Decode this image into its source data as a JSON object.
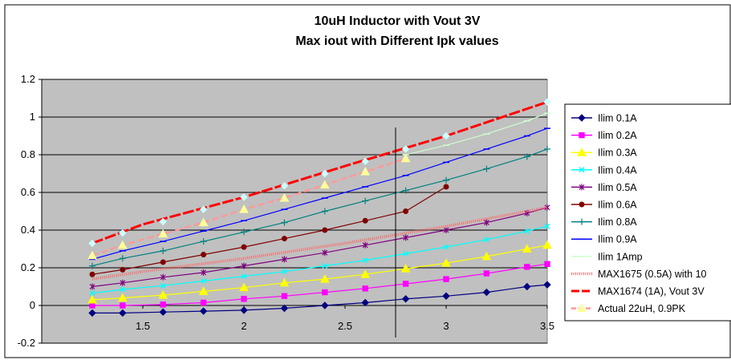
{
  "chart_data": {
    "type": "line",
    "title": [
      "10uH Inductor with Vout 3V",
      "Max iout with Different Ipk values"
    ],
    "xlim": [
      1,
      3.5
    ],
    "ylim": [
      -0.2,
      1.2
    ],
    "xticks": [
      "1.5",
      "2",
      "2.5",
      "3",
      "3.5"
    ],
    "yticks": [
      "-0.2",
      "0",
      "0.2",
      "0.4",
      "0.6",
      "0.8",
      "1",
      "1.2"
    ],
    "plot_background": "#c0c0c0",
    "grid": "horizontal",
    "legend_position": "right",
    "vertical_marker_x": 2.75,
    "series": [
      {
        "name": "Ilim 0.1A",
        "color": "#000080",
        "marker": "diamond",
        "x": [
          1.25,
          1.4,
          1.6,
          1.8,
          2,
          2.2,
          2.4,
          2.6,
          2.8,
          3,
          3.2,
          3.4,
          3.5
        ],
        "y": [
          -0.04,
          -0.04,
          -0.035,
          -0.03,
          -0.025,
          -0.015,
          0,
          0.015,
          0.035,
          0.05,
          0.07,
          0.1,
          0.11
        ]
      },
      {
        "name": "Ilim 0.2A",
        "color": "#ff00ff",
        "marker": "square",
        "x": [
          1.25,
          1.4,
          1.6,
          1.8,
          2,
          2.2,
          2.4,
          2.6,
          2.8,
          3,
          3.2,
          3.4,
          3.5
        ],
        "y": [
          0,
          0,
          0.005,
          0.015,
          0.035,
          0.05,
          0.07,
          0.09,
          0.115,
          0.14,
          0.17,
          0.205,
          0.22
        ]
      },
      {
        "name": "Ilim 0.3A",
        "color": "#ffff00",
        "marker": "triangle",
        "x": [
          1.25,
          1.4,
          1.6,
          1.8,
          2,
          2.2,
          2.4,
          2.6,
          2.8,
          3,
          3.2,
          3.4,
          3.5
        ],
        "y": [
          0.03,
          0.04,
          0.055,
          0.075,
          0.095,
          0.12,
          0.14,
          0.165,
          0.195,
          0.225,
          0.26,
          0.3,
          0.32
        ]
      },
      {
        "name": "Ilim 0.4A",
        "color": "#00ffff",
        "marker": "x",
        "x": [
          1.25,
          1.4,
          1.6,
          1.8,
          2,
          2.2,
          2.4,
          2.6,
          2.8,
          3,
          3.2,
          3.4,
          3.5
        ],
        "y": [
          0.065,
          0.085,
          0.105,
          0.13,
          0.155,
          0.18,
          0.21,
          0.24,
          0.275,
          0.31,
          0.35,
          0.395,
          0.42
        ]
      },
      {
        "name": "Ilim 0.5A",
        "color": "#800080",
        "marker": "star",
        "x": [
          1.25,
          1.4,
          1.6,
          1.8,
          2,
          2.2,
          2.4,
          2.6,
          2.8,
          3,
          3.2,
          3.4,
          3.5
        ],
        "y": [
          0.1,
          0.12,
          0.15,
          0.175,
          0.21,
          0.245,
          0.28,
          0.32,
          0.36,
          0.4,
          0.44,
          0.49,
          0.52
        ]
      },
      {
        "name": "Ilim 0.6A",
        "color": "#800000",
        "marker": "circle",
        "x": [
          1.25,
          1.4,
          1.6,
          1.8,
          2,
          2.2,
          2.4,
          2.6,
          2.8,
          3
        ],
        "y": [
          0.165,
          0.19,
          0.23,
          0.27,
          0.31,
          0.355,
          0.4,
          0.45,
          0.5,
          0.63
        ]
      },
      {
        "name": "Ilim 0.8A",
        "color": "#008080",
        "marker": "plus",
        "x": [
          1.25,
          1.4,
          1.6,
          1.8,
          2,
          2.2,
          2.4,
          2.6,
          2.8,
          3,
          3.2,
          3.4,
          3.5
        ],
        "y": [
          0.21,
          0.25,
          0.29,
          0.34,
          0.39,
          0.44,
          0.5,
          0.555,
          0.61,
          0.665,
          0.725,
          0.79,
          0.83
        ]
      },
      {
        "name": "Ilim 0.9A",
        "color": "#0000ff",
        "marker": "dash",
        "x": [
          1.25,
          1.4,
          1.6,
          1.8,
          2,
          2.2,
          2.4,
          2.6,
          2.8,
          3,
          3.2,
          3.4,
          3.5
        ],
        "y": [
          0.245,
          0.29,
          0.34,
          0.395,
          0.45,
          0.51,
          0.57,
          0.63,
          0.69,
          0.76,
          0.83,
          0.9,
          0.94
        ]
      },
      {
        "name": "Ilim 1Amp",
        "color": "#ccffcc",
        "marker": "dash",
        "x": [
          2.8,
          3,
          3.2,
          3.4,
          3.5
        ],
        "y": [
          0.8,
          0.85,
          0.91,
          0.98,
          1.02
        ]
      },
      {
        "name": "MAX1675 (0.5A) with 10",
        "color": "#ff6666",
        "marker": "none",
        "style": "thick-dotted",
        "x": [
          1.25,
          1.5,
          2,
          2.5,
          3,
          3.5
        ],
        "y": [
          0.14,
          0.18,
          0.25,
          0.33,
          0.42,
          0.52
        ]
      },
      {
        "name": "MAX1674 (1A), Vout 3V",
        "color": "#ff0000",
        "marker": "none",
        "style": "thick",
        "x": [
          1.25,
          1.5,
          2,
          2.5,
          3,
          3.5
        ],
        "y": [
          0.33,
          0.43,
          0.575,
          0.74,
          0.9,
          1.08
        ]
      },
      {
        "name": "Actual 22uH, 0.9PK",
        "color": "#ff9999",
        "marker": "triangle",
        "style": "dashed",
        "marker_color": "#ffff99",
        "x": [
          1.25,
          1.4,
          1.6,
          1.8,
          2,
          2.2,
          2.4,
          2.6,
          2.8
        ],
        "y": [
          0.265,
          0.32,
          0.38,
          0.44,
          0.51,
          0.57,
          0.64,
          0.71,
          0.78
        ]
      },
      {
        "name": "",
        "color": "#ccffff",
        "marker": "diamond",
        "line": false,
        "legend": false,
        "x": [
          1.25,
          1.4,
          1.6,
          1.8,
          2,
          2.2,
          2.4,
          2.6,
          2.8,
          3,
          3.5
        ],
        "y": [
          0.33,
          0.385,
          0.445,
          0.51,
          0.575,
          0.635,
          0.7,
          0.765,
          0.83,
          0.9,
          1.08
        ]
      }
    ]
  }
}
